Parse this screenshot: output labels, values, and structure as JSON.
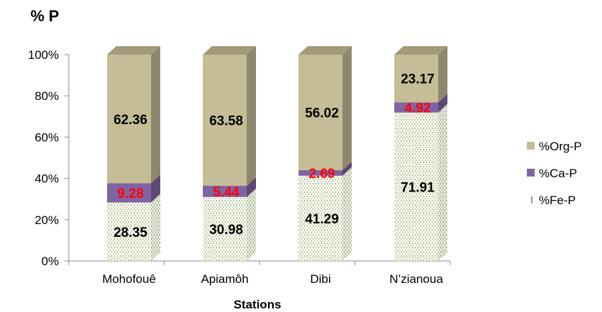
{
  "chart_data": {
    "type": "bar",
    "stacked": true,
    "three_d": true,
    "ylabel": "% P",
    "xlabel": "Stations",
    "ylim": [
      0,
      100
    ],
    "yticks": [
      "0%",
      "20%",
      "40%",
      "60%",
      "80%",
      "100%"
    ],
    "categories": [
      "Mohofouê",
      "Apiamôh",
      "Dibi",
      "N’zianoua"
    ],
    "series": [
      {
        "name": "%Fe-P",
        "values": [
          28.35,
          30.98,
          41.29,
          71.91
        ],
        "color": "#f3f6ea",
        "pattern": "dotted",
        "label_color": "#000000"
      },
      {
        "name": "%Ca-P",
        "values": [
          9.28,
          5.44,
          2.69,
          4.92
        ],
        "color": "#8064a2",
        "label_color": "#ff0000"
      },
      {
        "name": "%Org-P",
        "values": [
          62.36,
          63.58,
          56.02,
          23.17
        ],
        "color": "#c4bd97",
        "label_color": "#000000"
      }
    ],
    "legend": {
      "position": "right",
      "order": [
        "%Org-P",
        "%Ca-P",
        "%Fe-P"
      ]
    },
    "grid": false
  }
}
